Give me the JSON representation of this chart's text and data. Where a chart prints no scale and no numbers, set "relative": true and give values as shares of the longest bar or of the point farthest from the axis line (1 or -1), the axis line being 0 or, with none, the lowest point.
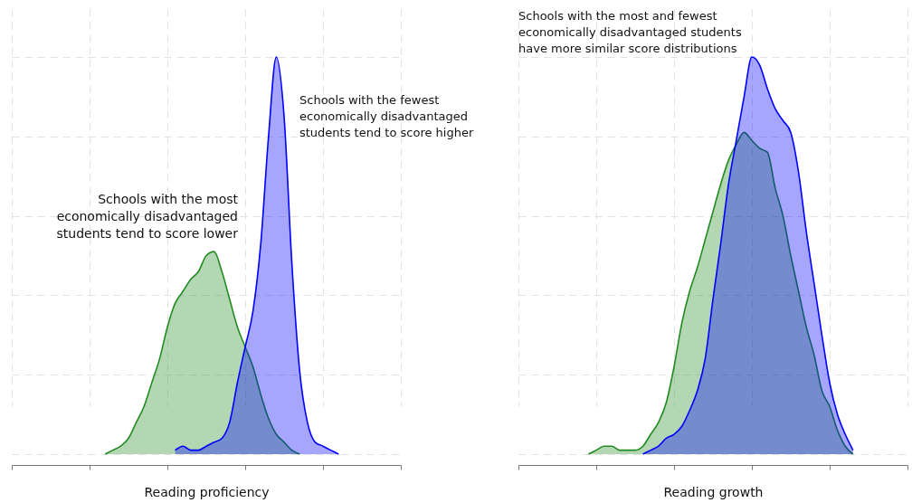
{
  "chart_data": [
    {
      "type": "area",
      "relative": true,
      "xlabel": "Reading proficiency",
      "grid": true,
      "tick_labels": false,
      "categories": [
        null,
        null,
        null,
        null,
        null,
        null,
        null,
        null,
        null,
        null,
        null,
        null,
        null,
        null,
        null,
        null,
        null,
        null,
        null,
        null,
        null,
        null,
        null,
        null,
        null,
        null,
        null,
        null,
        null,
        null,
        null,
        null,
        null,
        null,
        null,
        null,
        null,
        null,
        null,
        null,
        null,
        null,
        null,
        null,
        null,
        null,
        null,
        null,
        null,
        null,
        null
      ],
      "series": [
        {
          "color": "#228b22",
          "values": [
            null,
            null,
            null,
            null,
            null,
            null,
            null,
            null,
            null,
            null,
            null,
            null,
            0.0,
            0.01,
            0.02,
            0.04,
            0.08,
            0.12,
            0.18,
            0.24,
            0.32,
            0.38,
            0.41,
            0.44,
            0.46,
            0.5,
            0.51,
            0.46,
            0.39,
            0.32,
            0.27,
            0.22,
            0.15,
            0.09,
            0.05,
            0.03,
            0.01,
            0.0,
            null,
            null,
            null,
            null,
            null,
            null,
            null,
            null,
            null,
            null,
            null,
            null,
            null
          ]
        },
        {
          "color": "#0000ff",
          "values": [
            null,
            null,
            null,
            null,
            null,
            null,
            null,
            null,
            null,
            null,
            null,
            null,
            null,
            null,
            null,
            null,
            null,
            null,
            null,
            null,
            null,
            0.01,
            0.02,
            0.01,
            0.01,
            0.02,
            0.03,
            0.04,
            0.08,
            0.18,
            0.27,
            0.36,
            0.53,
            0.8,
            1.0,
            0.85,
            0.48,
            0.21,
            0.08,
            0.03,
            0.02,
            0.01,
            0.0,
            null,
            null,
            null,
            null,
            null,
            null,
            null,
            null
          ]
        }
      ],
      "annotations": [
        "Schools with the most\neconomically disadvantaged\nstudents tend to score lower",
        "Schools with the fewest\neconomically disadvantaged\nstudents tend to score higher"
      ]
    },
    {
      "type": "area",
      "relative": true,
      "xlabel": "Reading growth",
      "grid": true,
      "tick_labels": false,
      "categories": [
        null,
        null,
        null,
        null,
        null,
        null,
        null,
        null,
        null,
        null,
        null,
        null,
        null,
        null,
        null,
        null,
        null,
        null,
        null,
        null,
        null,
        null,
        null,
        null,
        null,
        null,
        null,
        null,
        null,
        null,
        null,
        null,
        null,
        null,
        null,
        null,
        null,
        null,
        null,
        null,
        null,
        null,
        null,
        null,
        null,
        null,
        null,
        null,
        null,
        null,
        null
      ],
      "series": [
        {
          "color": "#228b22",
          "values": [
            null,
            null,
            null,
            null,
            null,
            null,
            null,
            null,
            null,
            0.0,
            0.01,
            0.02,
            0.02,
            0.01,
            0.01,
            0.01,
            0.02,
            0.05,
            0.08,
            0.13,
            0.22,
            0.33,
            0.41,
            0.47,
            0.54,
            0.61,
            0.68,
            0.74,
            0.78,
            0.81,
            0.79,
            0.77,
            0.76,
            0.67,
            0.6,
            0.5,
            0.41,
            0.32,
            0.25,
            0.16,
            0.12,
            0.06,
            0.02,
            0.0,
            null,
            null,
            null,
            null,
            null,
            null,
            null
          ]
        },
        {
          "color": "#0000ff",
          "values": [
            null,
            null,
            null,
            null,
            null,
            null,
            null,
            null,
            null,
            null,
            null,
            null,
            null,
            null,
            null,
            null,
            0.0,
            0.01,
            0.02,
            0.04,
            0.05,
            0.07,
            0.11,
            0.16,
            0.24,
            0.39,
            0.53,
            0.68,
            0.79,
            0.9,
            1.0,
            0.98,
            0.92,
            0.87,
            0.84,
            0.81,
            0.71,
            0.56,
            0.43,
            0.3,
            0.18,
            0.1,
            0.05,
            0.01,
            null,
            null,
            null,
            null,
            null,
            null,
            null
          ]
        }
      ],
      "annotations": [
        "Schools with the most and fewest\neconomically disadvantaged students\nhave more similar score distributions"
      ]
    }
  ]
}
